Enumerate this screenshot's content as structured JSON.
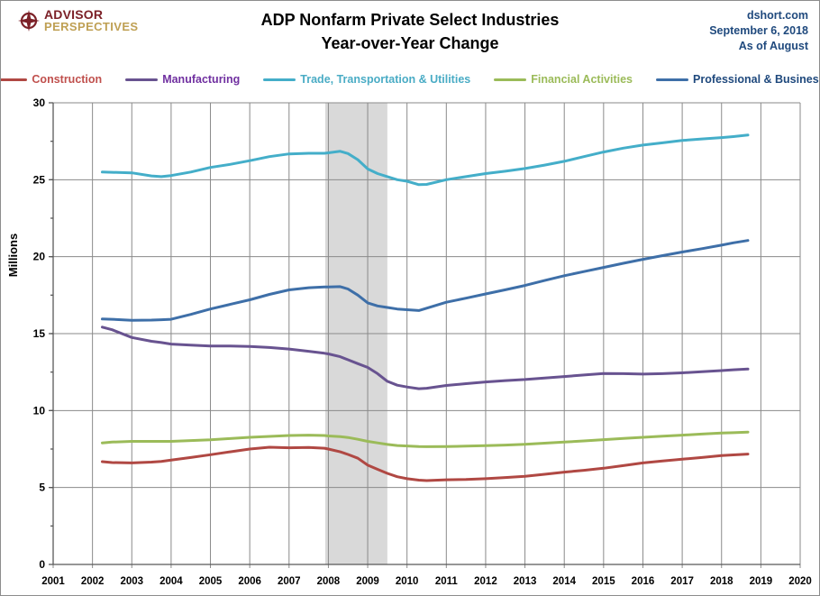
{
  "header": {
    "logo_line1": "ADVISOR",
    "logo_line2": "PERSPECTIVES",
    "logo_color_primary": "#7C2128",
    "logo_color_secondary": "#BFA054",
    "title_line1": "ADP Nonfarm Private Select Industries",
    "title_line2": "Year-over-Year Change",
    "source": "dshort.com",
    "date": "September 6, 2018",
    "as_of": "As of August",
    "source_color": "#1F497D"
  },
  "chart_data": {
    "type": "line",
    "title": "ADP Nonfarm Private Select Industries Year-over-Year Change",
    "xlabel": "",
    "ylabel": "Millions",
    "xlim": [
      2001,
      2020
    ],
    "ylim": [
      0,
      30
    ],
    "x_ticks": [
      2001,
      2002,
      2003,
      2004,
      2005,
      2006,
      2007,
      2008,
      2009,
      2010,
      2011,
      2012,
      2013,
      2014,
      2015,
      2016,
      2017,
      2018,
      2019,
      2020
    ],
    "y_ticks": [
      0,
      5,
      10,
      15,
      20,
      25,
      30
    ],
    "grid": true,
    "legend_position": "top",
    "grid_color": "#8a8a8a",
    "axis_color": "#595959",
    "recession_band": {
      "start": 2007.92,
      "end": 2009.5,
      "color": "#D9D9D9"
    },
    "x": [
      2002.25,
      2002.5,
      2003,
      2003.5,
      2003.75,
      2004,
      2004.5,
      2005,
      2005.5,
      2006,
      2006.5,
      2007,
      2007.5,
      2007.9,
      2008,
      2008.3,
      2008.5,
      2008.75,
      2009,
      2009.25,
      2009.5,
      2009.75,
      2010,
      2010.3,
      2010.5,
      2011,
      2011.5,
      2012,
      2012.5,
      2013,
      2013.5,
      2014,
      2014.5,
      2015,
      2015.5,
      2016,
      2016.5,
      2017,
      2017.5,
      2018,
      2018.3,
      2018.67
    ],
    "series": [
      {
        "name": "Construction",
        "color": "#B04843",
        "label_color": "#C0504D",
        "values": [
          6.68,
          6.62,
          6.6,
          6.65,
          6.7,
          6.78,
          6.95,
          7.13,
          7.32,
          7.5,
          7.62,
          7.58,
          7.6,
          7.55,
          7.5,
          7.32,
          7.15,
          6.9,
          6.45,
          6.18,
          5.92,
          5.7,
          5.57,
          5.48,
          5.45,
          5.5,
          5.52,
          5.57,
          5.65,
          5.73,
          5.86,
          6.0,
          6.12,
          6.25,
          6.42,
          6.6,
          6.72,
          6.84,
          6.95,
          7.07,
          7.12,
          7.17
        ]
      },
      {
        "name": "Manufacturing",
        "color": "#685390",
        "label_color": "#7030A0",
        "values": [
          15.42,
          15.25,
          14.75,
          14.5,
          14.42,
          14.32,
          14.25,
          14.2,
          14.2,
          14.17,
          14.1,
          14.0,
          13.85,
          13.72,
          13.68,
          13.5,
          13.3,
          13.05,
          12.8,
          12.4,
          11.9,
          11.65,
          11.53,
          11.42,
          11.45,
          11.63,
          11.75,
          11.86,
          11.95,
          12.02,
          12.12,
          12.21,
          12.31,
          12.41,
          12.4,
          12.37,
          12.4,
          12.45,
          12.52,
          12.6,
          12.65,
          12.7
        ]
      },
      {
        "name": "Trade, Transportation & Utilities",
        "color": "#44AEC9",
        "label_color": "#4AACC5",
        "values": [
          25.5,
          25.48,
          25.45,
          25.25,
          25.2,
          25.27,
          25.5,
          25.8,
          26.0,
          26.24,
          26.5,
          26.68,
          26.72,
          26.72,
          26.75,
          26.85,
          26.7,
          26.3,
          25.7,
          25.4,
          25.2,
          25.0,
          24.9,
          24.68,
          24.7,
          25.0,
          25.2,
          25.4,
          25.55,
          25.73,
          25.95,
          26.2,
          26.5,
          26.8,
          27.05,
          27.25,
          27.4,
          27.55,
          27.65,
          27.74,
          27.8,
          27.9
        ]
      },
      {
        "name": "Financial Activities",
        "color": "#9BBB59",
        "label_color": "#9BBB59",
        "values": [
          7.9,
          7.95,
          8.0,
          8.0,
          8.0,
          8.0,
          8.05,
          8.1,
          8.18,
          8.26,
          8.32,
          8.38,
          8.4,
          8.38,
          8.35,
          8.3,
          8.25,
          8.13,
          8.0,
          7.9,
          7.8,
          7.73,
          7.7,
          7.66,
          7.65,
          7.66,
          7.69,
          7.72,
          7.76,
          7.81,
          7.88,
          7.95,
          8.03,
          8.11,
          8.19,
          8.26,
          8.33,
          8.4,
          8.47,
          8.54,
          8.56,
          8.6
        ]
      },
      {
        "name": "Professional & Business",
        "color": "#3E6FA8",
        "label_color": "#1F497D",
        "values": [
          15.95,
          15.93,
          15.87,
          15.88,
          15.9,
          15.93,
          16.25,
          16.6,
          16.9,
          17.2,
          17.55,
          17.84,
          17.98,
          18.03,
          18.03,
          18.05,
          17.9,
          17.5,
          17.0,
          16.8,
          16.7,
          16.6,
          16.55,
          16.5,
          16.65,
          17.04,
          17.3,
          17.58,
          17.85,
          18.13,
          18.45,
          18.76,
          19.03,
          19.3,
          19.57,
          19.83,
          20.07,
          20.3,
          20.52,
          20.75,
          20.9,
          21.05
        ]
      }
    ]
  }
}
